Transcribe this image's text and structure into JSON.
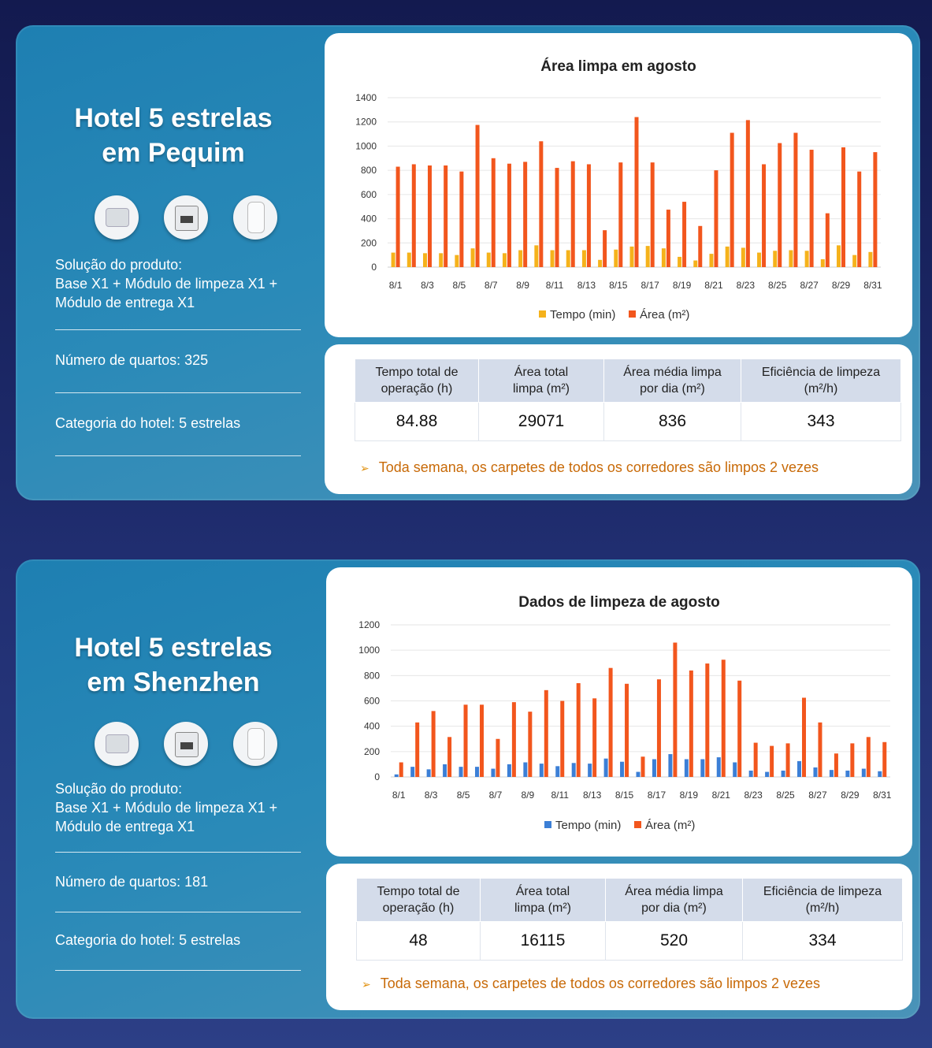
{
  "sections": [
    {
      "title_line1": "Hotel 5 estrelas",
      "title_line2": "em Pequim",
      "icons": [
        "base-robot-icon",
        "cleaning-module-icon",
        "delivery-module-icon"
      ],
      "solution_label": "Solução do produto:",
      "solution_line1": "Base X1 + Módulo de limpeza X1 +",
      "solution_line2": "Módulo de entrega X1",
      "rooms": "Número de quartos: 325",
      "category": "Categoria do hotel: 5 estrelas",
      "chart_title": "Área limpa em agosto",
      "legend_time": "Tempo (min)",
      "legend_area": "Área (m²)",
      "stats_headers": [
        [
          "Tempo total de",
          "operação (h)"
        ],
        [
          "Área total",
          "limpa (m²)"
        ],
        [
          "Área média limpa",
          "por dia (m²)"
        ],
        [
          "Eficiência de limpeza",
          "(m²/h)"
        ]
      ],
      "stats_values": [
        "84.88",
        "29071",
        "836",
        "343"
      ],
      "note": "Toda semana, os carpetes de todos os corredores são limpos 2 vezes"
    },
    {
      "title_line1": "Hotel 5 estrelas",
      "title_line2": "em Shenzhen",
      "icons": [
        "base-robot-icon",
        "cleaning-module-icon",
        "delivery-module-icon"
      ],
      "solution_label": "Solução do produto:",
      "solution_line1": "Base X1 + Módulo de limpeza X1 +",
      "solution_line2": "Módulo de entrega X1",
      "rooms": "Número de quartos: 181",
      "category": "Categoria do hotel: 5 estrelas",
      "chart_title": "Dados de limpeza de agosto",
      "legend_time": "Tempo (min)",
      "legend_area": "Área (m²)",
      "stats_headers": [
        [
          "Tempo total de",
          "operação (h)"
        ],
        [
          "Área total",
          "limpa (m²)"
        ],
        [
          "Área média limpa",
          "por dia (m²)"
        ],
        [
          "Eficiência de limpeza",
          "(m²/h)"
        ]
      ],
      "stats_values": [
        "48",
        "16115",
        "520",
        "334"
      ],
      "note": "Toda semana, os carpetes de todos os corredores são limpos 2 vezes"
    }
  ],
  "chart_data": [
    {
      "type": "bar",
      "title": "Área limpa em agosto",
      "xlabel": "",
      "ylabel": "",
      "ylim": [
        0,
        1400
      ],
      "yticks": [
        0,
        200,
        400,
        600,
        800,
        1000,
        1200,
        1400
      ],
      "grid": true,
      "legend": "bottom",
      "categories": [
        "8/1",
        "8/2",
        "8/3",
        "8/4",
        "8/5",
        "8/6",
        "8/7",
        "8/8",
        "8/9",
        "8/10",
        "8/11",
        "8/12",
        "8/13",
        "8/14",
        "8/15",
        "8/16",
        "8/17",
        "8/18",
        "8/19",
        "8/20",
        "8/21",
        "8/22",
        "8/23",
        "8/24",
        "8/25",
        "8/26",
        "8/27",
        "8/28",
        "8/29",
        "8/30",
        "8/31"
      ],
      "tick_labels": [
        "8/1",
        "8/3",
        "8/5",
        "8/7",
        "8/9",
        "8/11",
        "8/13",
        "8/15",
        "8/17",
        "8/19",
        "8/21",
        "8/23",
        "8/25",
        "8/27",
        "8/29",
        "8/31"
      ],
      "series": [
        {
          "name": "Tempo (min)",
          "color": "#f5b21b",
          "values": [
            120,
            120,
            115,
            115,
            100,
            155,
            120,
            115,
            140,
            180,
            140,
            140,
            140,
            60,
            145,
            170,
            175,
            155,
            85,
            55,
            110,
            170,
            160,
            120,
            135,
            140,
            135,
            65,
            180,
            100,
            125
          ]
        },
        {
          "name": "Área (m²)",
          "color": "#f2561d",
          "values": [
            830,
            850,
            840,
            840,
            790,
            1175,
            900,
            855,
            870,
            1040,
            820,
            875,
            850,
            305,
            865,
            1240,
            865,
            475,
            540,
            340,
            800,
            1110,
            1215,
            850,
            1025,
            1110,
            970,
            445,
            990,
            790,
            950
          ]
        }
      ]
    },
    {
      "type": "bar",
      "title": "Dados de limpeza de agosto",
      "xlabel": "",
      "ylabel": "",
      "ylim": [
        0,
        1200
      ],
      "yticks": [
        0,
        200,
        400,
        600,
        800,
        1000,
        1200
      ],
      "grid": true,
      "legend": "bottom",
      "categories": [
        "8/1",
        "8/2",
        "8/3",
        "8/4",
        "8/5",
        "8/6",
        "8/7",
        "8/8",
        "8/9",
        "8/10",
        "8/11",
        "8/12",
        "8/13",
        "8/14",
        "8/15",
        "8/16",
        "8/17",
        "8/18",
        "8/19",
        "8/20",
        "8/21",
        "8/22",
        "8/23",
        "8/24",
        "8/25",
        "8/26",
        "8/27",
        "8/28",
        "8/29",
        "8/30",
        "8/31"
      ],
      "tick_labels": [
        "8/1",
        "8/3",
        "8/5",
        "8/7",
        "8/9",
        "8/11",
        "8/13",
        "8/15",
        "8/17",
        "8/19",
        "8/21",
        "8/23",
        "8/25",
        "8/27",
        "8/29",
        "8/31"
      ],
      "series": [
        {
          "name": "Tempo (min)",
          "color": "#3c7fd6",
          "values": [
            20,
            80,
            60,
            100,
            80,
            80,
            65,
            100,
            115,
            105,
            85,
            110,
            105,
            145,
            120,
            40,
            140,
            180,
            140,
            140,
            155,
            115,
            50,
            40,
            50,
            125,
            75,
            55,
            50,
            65,
            45
          ]
        },
        {
          "name": "Área (m²)",
          "color": "#f2561d",
          "values": [
            115,
            430,
            520,
            315,
            570,
            570,
            300,
            590,
            515,
            685,
            600,
            740,
            620,
            860,
            735,
            160,
            770,
            1060,
            840,
            895,
            925,
            760,
            270,
            245,
            265,
            625,
            430,
            185,
            265,
            315,
            275
          ]
        }
      ]
    }
  ]
}
